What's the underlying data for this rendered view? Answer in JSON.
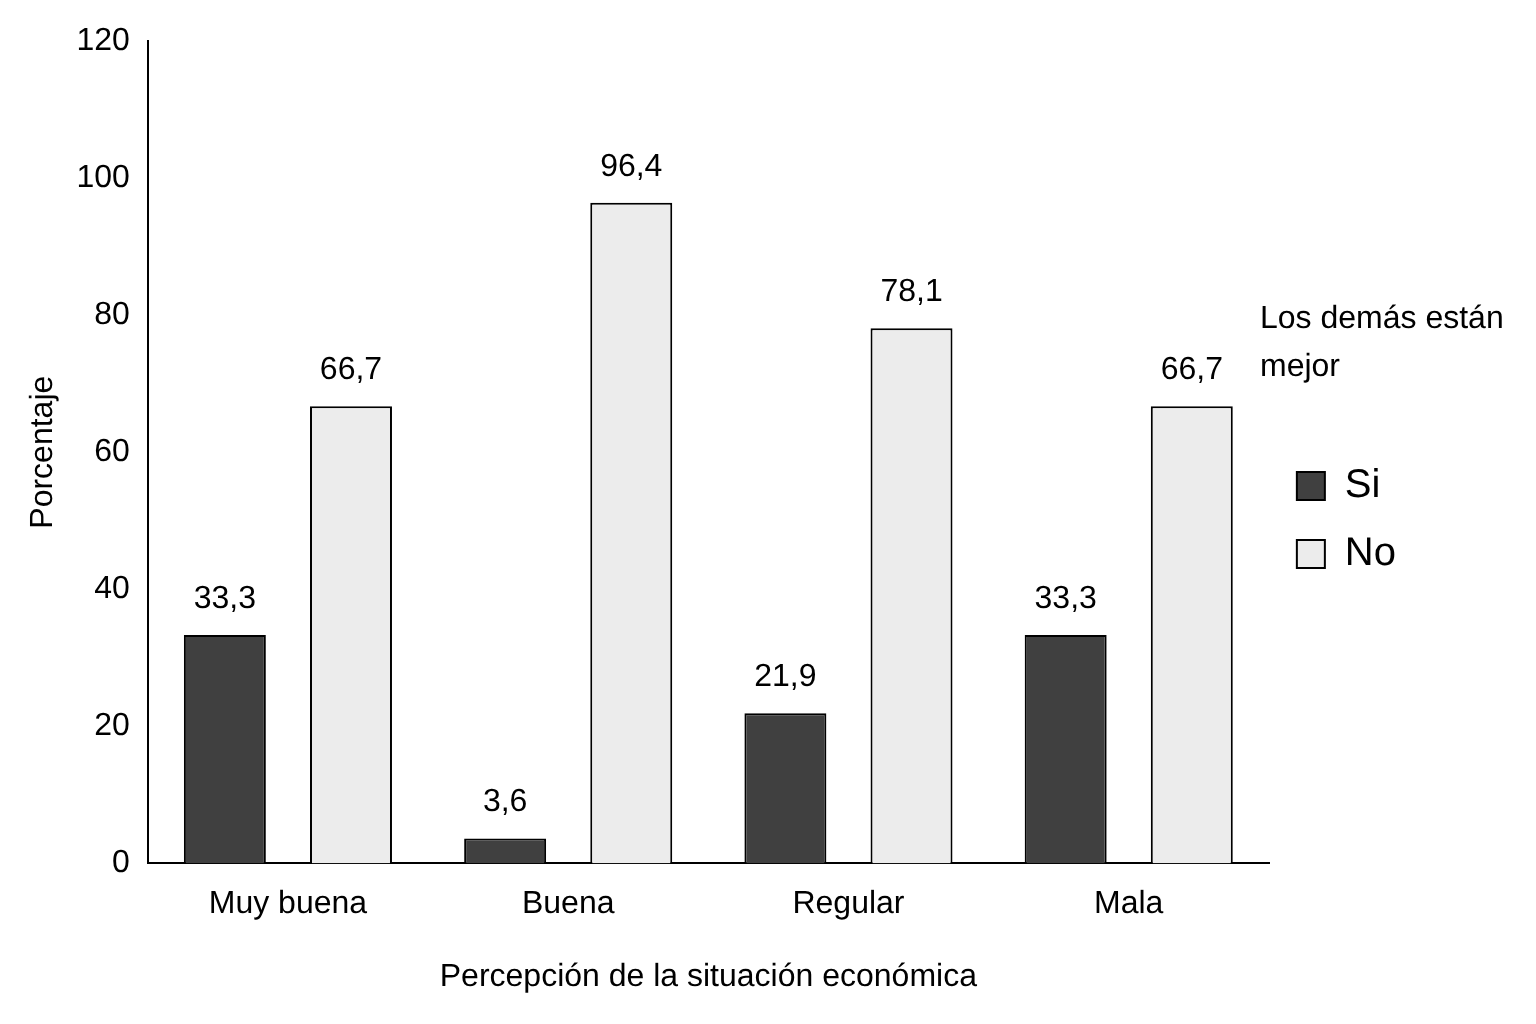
{
  "chart_data": {
    "type": "bar",
    "xlabel": "Percepción de la situación económica",
    "ylabel": "Porcentaje",
    "legend_title": "Los demás están mejor",
    "categories": [
      "Muy buena",
      "Buena",
      "Regular",
      "Mala"
    ],
    "series": [
      {
        "name": "Si",
        "color": "#404040",
        "values": [
          33.3,
          3.6,
          21.9,
          33.3
        ],
        "value_labels": [
          "33,3",
          "3,6",
          "21,9",
          "33,3"
        ]
      },
      {
        "name": "No",
        "color": "#ececec",
        "values": [
          66.7,
          96.4,
          78.1,
          66.7
        ],
        "value_labels": [
          "66,7",
          "96,4",
          "78,1",
          "66,7"
        ]
      }
    ],
    "ylim": [
      0,
      120
    ],
    "yticks": [
      0,
      20,
      40,
      60,
      80,
      100,
      120
    ],
    "grid": false,
    "legend": "right"
  }
}
